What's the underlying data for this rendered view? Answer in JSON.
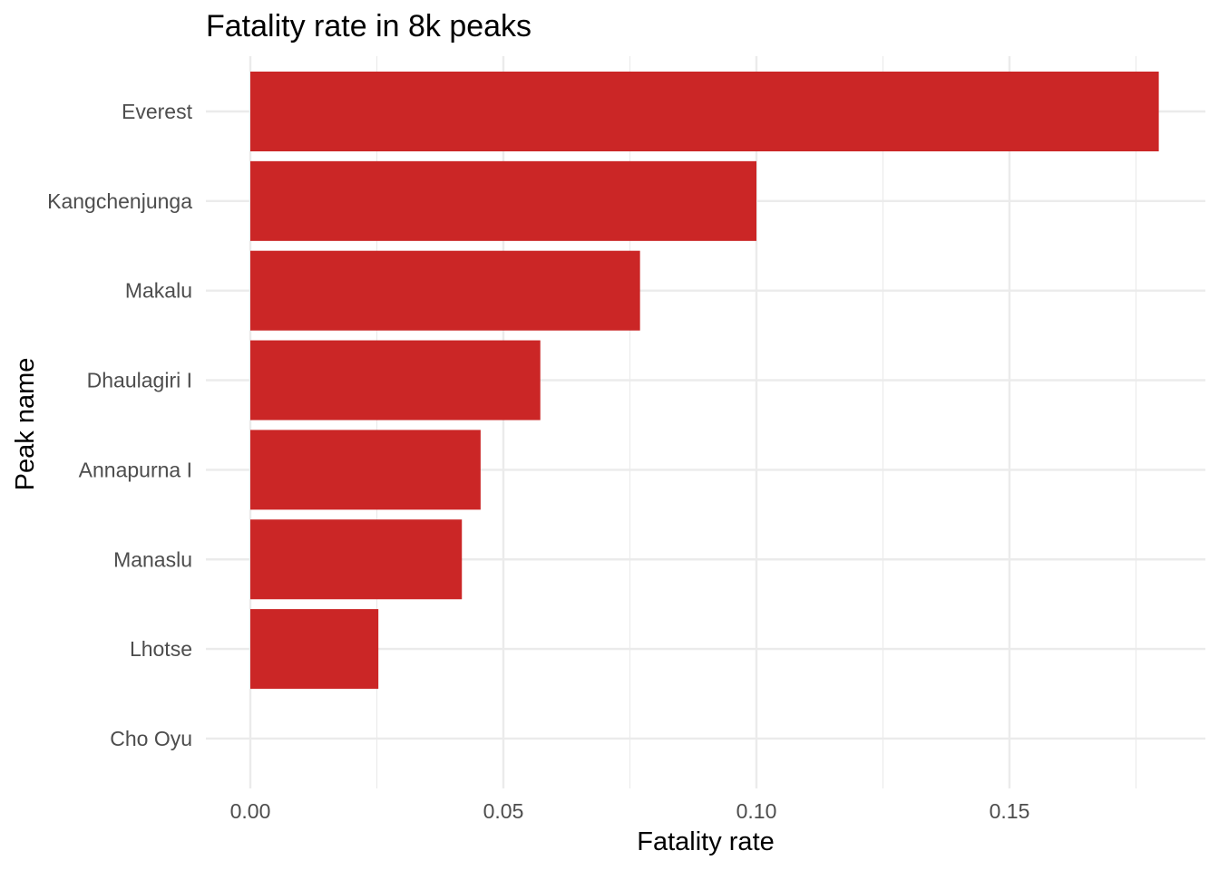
{
  "chart_data": {
    "type": "bar",
    "orientation": "horizontal",
    "title": "Fatality rate in 8k peaks",
    "xlabel": "Fatality rate",
    "ylabel": "Peak name",
    "categories": [
      "Everest",
      "Kangchenjunga",
      "Makalu",
      "Dhaulagiri I",
      "Annapurna I",
      "Manaslu",
      "Lhotse",
      "Cho Oyu"
    ],
    "values": [
      0.1795,
      0.1,
      0.077,
      0.0573,
      0.0455,
      0.0418,
      0.0253,
      0.0
    ],
    "xticks": [
      "0.00",
      "0.05",
      "0.10",
      "0.15"
    ],
    "xtick_values": [
      0,
      0.05,
      0.1,
      0.15
    ],
    "xlim": [
      0,
      0.1885
    ],
    "grid": true,
    "bar_color": "#cb2626"
  }
}
